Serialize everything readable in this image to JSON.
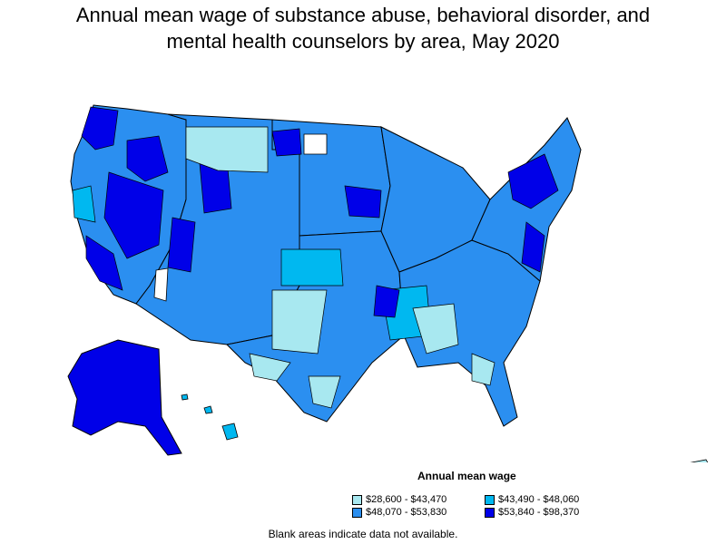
{
  "title_lines": [
    "Annual mean wage of substance abuse, behavioral disorder, and",
    "mental health counselors by area, May 2020"
  ],
  "legend": {
    "title": "Annual mean wage",
    "items": [
      {
        "label": "$28,600 - $43,470",
        "color": "#a8e8f0"
      },
      {
        "label": "$43,490 - $48,060",
        "color": "#00b8f0"
      },
      {
        "label": "$48,070 - $53,830",
        "color": "#2b8ff0"
      },
      {
        "label": "$53,840 - $98,370",
        "color": "#0000e8"
      }
    ]
  },
  "note": "Blank areas indicate data not available.",
  "map": {
    "region": "United States (contiguous states, Alaska, Hawaii, Puerto Rico)",
    "colors": {
      "outline": "#000000",
      "no_data": "#ffffff"
    }
  }
}
